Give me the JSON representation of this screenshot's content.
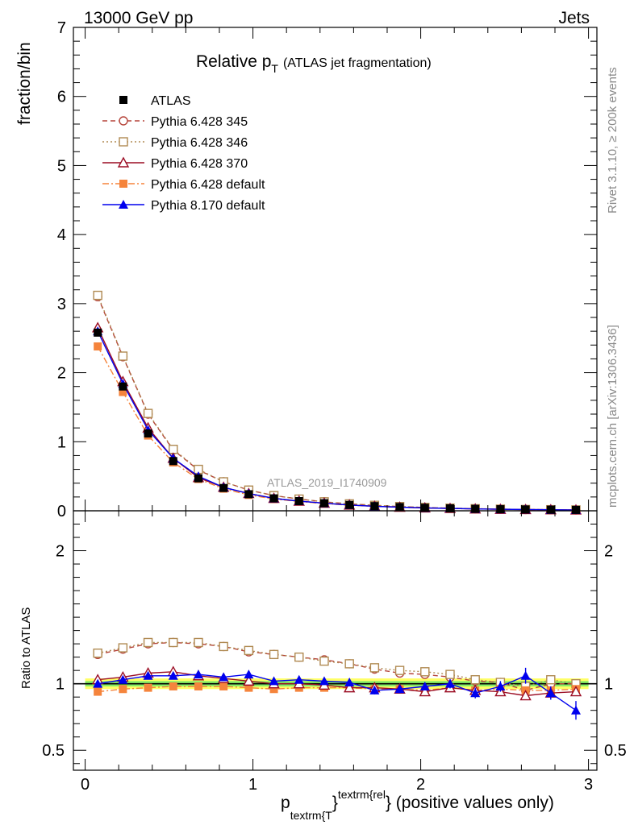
{
  "header": {
    "left": "13000 GeV pp",
    "right": "Jets"
  },
  "title": {
    "main": "Relative p",
    "sub": "T",
    "paren": "(ATLAS jet fragmentation)"
  },
  "ylabel_main": "fraction/bin",
  "ylabel_ratio": "Ratio to ATLAS",
  "xlabel": {
    "p": "p",
    "sub": "textrm{T",
    "close1": "}",
    "sup": "textrm{rel",
    "rest": "} (positive values only)"
  },
  "watermark": "ATLAS_2019_I1740909",
  "side_top": "Rivet 3.1.10, ≥ 200k events",
  "side_bottom": "mcplots.cern.ch [arXiv:1306.3436]",
  "colors": {
    "atlas": "#000000",
    "p345": "#b5443a",
    "p346": "#b08a52",
    "p370": "#9b0d24",
    "p6def": "#f5843c",
    "p8def": "#0000ee",
    "band_outer": "#ffff66",
    "band_inner": "#88ee66",
    "refline": "#1a7a1a"
  },
  "chart_data": {
    "type": "line",
    "x": [
      0.075,
      0.225,
      0.375,
      0.525,
      0.675,
      0.825,
      0.975,
      1.125,
      1.275,
      1.425,
      1.575,
      1.725,
      1.875,
      2.025,
      2.175,
      2.325,
      2.475,
      2.625,
      2.775,
      2.925
    ],
    "xlim": [
      -0.07,
      3.05
    ],
    "xticks": [
      "0",
      "1",
      "2",
      "3"
    ],
    "main": {
      "ylim": [
        0,
        7
      ],
      "yticks": [
        "0",
        "1",
        "2",
        "3",
        "4",
        "5",
        "6",
        "7"
      ],
      "series": [
        {
          "key": "atlas",
          "name": "ATLAS",
          "marker": "square-filled",
          "line": "none",
          "values": [
            2.58,
            1.8,
            1.12,
            0.72,
            0.47,
            0.33,
            0.24,
            0.18,
            0.14,
            0.11,
            0.085,
            0.068,
            0.054,
            0.043,
            0.035,
            0.028,
            0.023,
            0.019,
            0.016,
            0.013
          ]
        },
        {
          "key": "p345",
          "name": "Pythia 6.428 345",
          "marker": "circle-open",
          "line": "dashed",
          "values": [
            3.1,
            2.23,
            1.4,
            0.88,
            0.59,
            0.42,
            0.3,
            0.22,
            0.17,
            0.13,
            0.1,
            0.078,
            0.061,
            0.048,
            0.038,
            0.029,
            0.023,
            0.018,
            0.015,
            0.012
          ]
        },
        {
          "key": "p346",
          "name": "Pythia 6.428 346",
          "marker": "square-open",
          "line": "dotted",
          "values": [
            3.12,
            2.24,
            1.41,
            0.89,
            0.6,
            0.42,
            0.3,
            0.22,
            0.17,
            0.13,
            0.1,
            0.079,
            0.062,
            0.049,
            0.039,
            0.03,
            0.024,
            0.019,
            0.016,
            0.013
          ]
        },
        {
          "key": "p370",
          "name": "Pythia 6.428 370",
          "marker": "triangle-open",
          "line": "solid",
          "values": [
            2.65,
            1.87,
            1.2,
            0.76,
            0.48,
            0.34,
            0.25,
            0.18,
            0.14,
            0.11,
            0.083,
            0.066,
            0.052,
            0.041,
            0.034,
            0.027,
            0.022,
            0.018,
            0.015,
            0.012
          ]
        },
        {
          "key": "p6def",
          "name": "Pythia 6.428 default",
          "marker": "square-filled",
          "line": "dashdot",
          "values": [
            2.38,
            1.72,
            1.09,
            0.7,
            0.46,
            0.32,
            0.23,
            0.17,
            0.135,
            0.105,
            0.082,
            0.065,
            0.052,
            0.041,
            0.034,
            0.027,
            0.022,
            0.018,
            0.015,
            0.012
          ]
        },
        {
          "key": "p8def",
          "name": "Pythia 8.170 default",
          "marker": "triangle-filled",
          "line": "solid",
          "values": [
            2.6,
            1.84,
            1.17,
            0.76,
            0.5,
            0.34,
            0.25,
            0.18,
            0.14,
            0.11,
            0.084,
            0.065,
            0.052,
            0.042,
            0.035,
            0.027,
            0.022,
            0.019,
            0.015,
            0.011
          ]
        }
      ]
    },
    "ratio": {
      "ylim": [
        0.35,
        2.3
      ],
      "yticks": [
        "0.5",
        "1",
        "2"
      ],
      "band_outer": 0.04,
      "band_inner": 0.02,
      "series": [
        {
          "key": "p345",
          "values": [
            1.22,
            1.26,
            1.3,
            1.31,
            1.3,
            1.28,
            1.24,
            1.22,
            1.2,
            1.18,
            1.15,
            1.11,
            1.08,
            1.07,
            1.05,
            1.02,
            1.01,
            0.95,
            1.0,
            1.0
          ]
        },
        {
          "key": "p346",
          "values": [
            1.23,
            1.27,
            1.31,
            1.31,
            1.31,
            1.28,
            1.25,
            1.22,
            1.2,
            1.17,
            1.15,
            1.12,
            1.1,
            1.09,
            1.07,
            1.03,
            1.01,
            0.98,
            1.03,
            1.0
          ]
        },
        {
          "key": "p370",
          "values": [
            1.03,
            1.05,
            1.08,
            1.09,
            1.06,
            1.04,
            1.02,
            1.0,
            1.0,
            0.99,
            0.97,
            0.97,
            0.96,
            0.94,
            0.97,
            0.95,
            0.94,
            0.91,
            0.93,
            0.94
          ]
        },
        {
          "key": "p6def",
          "values": [
            0.94,
            0.96,
            0.97,
            0.98,
            0.98,
            0.98,
            0.97,
            0.96,
            0.97,
            0.97,
            0.97,
            0.96,
            0.96,
            0.95,
            0.97,
            0.95,
            0.96,
            0.95,
            0.95,
            0.96
          ]
        },
        {
          "key": "p8def",
          "values": [
            1.0,
            1.03,
            1.06,
            1.06,
            1.07,
            1.05,
            1.07,
            1.02,
            1.03,
            1.02,
            1.01,
            0.95,
            0.96,
            0.98,
            1.0,
            0.93,
            0.98,
            1.06,
            0.93,
            0.8
          ],
          "errors": [
            0.01,
            0.01,
            0.01,
            0.01,
            0.01,
            0.01,
            0.015,
            0.015,
            0.02,
            0.02,
            0.025,
            0.03,
            0.03,
            0.03,
            0.035,
            0.04,
            0.04,
            0.06,
            0.05,
            0.07
          ]
        }
      ]
    }
  }
}
